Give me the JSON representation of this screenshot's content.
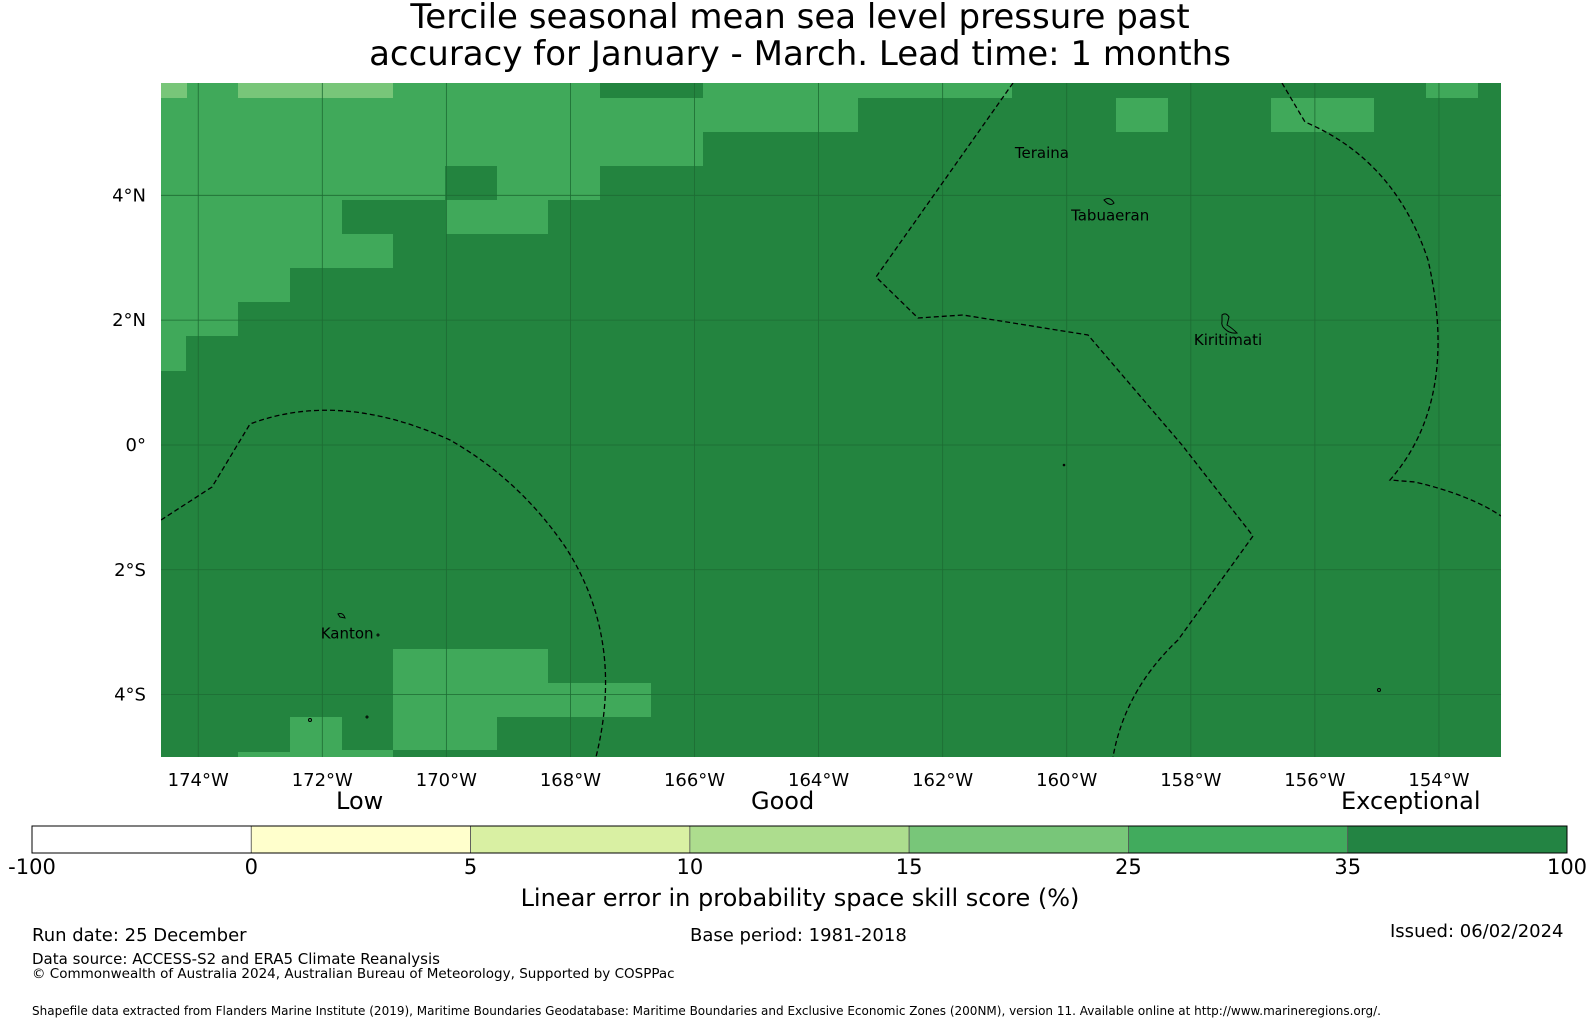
{
  "title": {
    "line1": "Tercile seasonal mean sea level pressure past",
    "line2": "accuracy for January - March. Lead time: 1 months"
  },
  "map": {
    "lon_range": [
      -174.6,
      -153.0
    ],
    "lat_range": [
      -5.0,
      5.8
    ],
    "grid": true,
    "lon_ticks": [
      {
        "lon": -174,
        "label": "174°W"
      },
      {
        "lon": -172,
        "label": "172°W"
      },
      {
        "lon": -170,
        "label": "170°W"
      },
      {
        "lon": -168,
        "label": "168°W"
      },
      {
        "lon": -166,
        "label": "166°W"
      },
      {
        "lon": -164,
        "label": "164°W"
      },
      {
        "lon": -162,
        "label": "162°W"
      },
      {
        "lon": -160,
        "label": "160°W"
      },
      {
        "lon": -158,
        "label": "158°W"
      },
      {
        "lon": -156,
        "label": "156°W"
      },
      {
        "lon": -154,
        "label": "154°W"
      }
    ],
    "lat_ticks": [
      {
        "lat": 4,
        "label": "4°N"
      },
      {
        "lat": 2,
        "label": "2°N"
      },
      {
        "lat": 0,
        "label": "0°"
      },
      {
        "lat": -2,
        "label": "2°S"
      },
      {
        "lat": -4,
        "label": "4°S"
      }
    ],
    "places": [
      {
        "name": "Teraina",
        "lon": -160.4,
        "lat": 4.6
      },
      {
        "name": "Tabuaeran",
        "lon": -159.3,
        "lat": 3.6
      },
      {
        "name": "Kiritimati",
        "lon": -157.4,
        "lat": 1.6
      },
      {
        "name": "Kanton",
        "lon": -171.6,
        "lat": -3.1
      }
    ],
    "colors": {
      "dark_green": "#23843f",
      "mid_green": "#40a95a",
      "light_green": "#78c679",
      "grid_line": "#1d6b33",
      "boundary": "#000000"
    }
  },
  "colorbar": {
    "segments": [
      {
        "from": "-100",
        "to": "0",
        "color": "#ffffff"
      },
      {
        "from": "0",
        "to": "5",
        "color": "#ffffcc"
      },
      {
        "from": "5",
        "to": "10",
        "color": "#d9f0a3"
      },
      {
        "from": "10",
        "to": "15",
        "color": "#addd8e"
      },
      {
        "from": "15",
        "to": "25",
        "color": "#78c679"
      },
      {
        "from": "25",
        "to": "35",
        "color": "#41ab5d"
      },
      {
        "from": "35",
        "to": "100",
        "color": "#238443"
      }
    ],
    "tick_labels": [
      "-100",
      "0",
      "5",
      "10",
      "15",
      "25",
      "35",
      "100"
    ],
    "categories": {
      "low": "Low",
      "good": "Good",
      "exceptional": "Exceptional"
    },
    "label": "Linear error in probability space skill score (%)"
  },
  "footer": {
    "run_date": "Run date: 25 December",
    "base_period": "Base period: 1981-2018",
    "issued": "Issued: 06/02/2024",
    "data_source": "Data source: ACCESS-S2 and ERA5 Climate Reanalysis",
    "copyright": "© Commonwealth of Australia 2024, Australian Bureau of Meteorology, Supported by COSPPac",
    "shapefile": "Shapefile data extracted from Flanders Marine Institute (2019), Maritime Boundaries Geodatabase: Maritime Boundaries and Exclusive Economic Zones (200NM), version 11. Available online at http://www.marineregions.org/."
  }
}
